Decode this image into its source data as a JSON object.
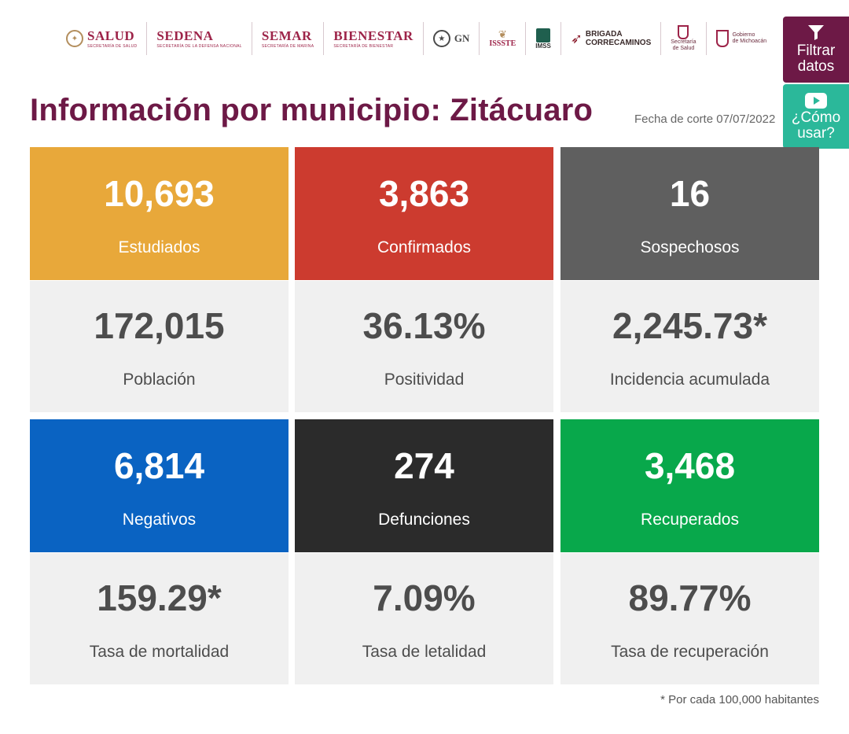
{
  "logos": {
    "salud": "SALUD",
    "salud_sub": "SECRETARÍA DE SALUD",
    "sedena": "SEDENA",
    "sedena_sub": "SECRETARÍA DE LA DEFENSA NACIONAL",
    "semar": "SEMAR",
    "semar_sub": "SECRETARÍA DE MARINA",
    "bienestar": "BIENESTAR",
    "bienestar_sub": "SECRETARÍA DE BIENESTAR",
    "gn": "GN",
    "issste": "ISSSTE",
    "imss": "IMSS",
    "brigada_1": "BRIGADA",
    "brigada_2": "CORRECAMINOS",
    "ssm_1": "Secretaría",
    "ssm_2": "de Salud",
    "gob_1": "Gobierno",
    "gob_2": "de Michoacán"
  },
  "actions": {
    "filter_label_1": "Filtrar",
    "filter_label_2": "datos",
    "help_label_1": "¿Cómo",
    "help_label_2": "usar?"
  },
  "header": {
    "title": "Información por municipio: Zitácuaro",
    "cutoff": "Fecha de corte 07/07/2022"
  },
  "colors": {
    "estudiados": "#e8a83a",
    "confirmados": "#cc3b2f",
    "sospechosos": "#5f5f5f",
    "negativos": "#0a63c2",
    "defunciones": "#2b2b2b",
    "recuperados": "#08a84b"
  },
  "stats": {
    "estudiados": {
      "value": "10,693",
      "label": "Estudiados"
    },
    "confirmados": {
      "value": "3,863",
      "label": "Confirmados"
    },
    "sospechosos": {
      "value": "16",
      "label": "Sospechosos"
    },
    "poblacion": {
      "value": "172,015",
      "label": "Población"
    },
    "positividad": {
      "value": "36.13%",
      "label": "Positividad"
    },
    "incidencia": {
      "value": "2,245.73*",
      "label": "Incidencia acumulada"
    },
    "negativos": {
      "value": "6,814",
      "label": "Negativos"
    },
    "defunciones": {
      "value": "274",
      "label": "Defunciones"
    },
    "recuperados": {
      "value": "3,468",
      "label": "Recuperados"
    },
    "mortalidad": {
      "value": "159.29*",
      "label": "Tasa de mortalidad"
    },
    "letalidad": {
      "value": "7.09%",
      "label": "Tasa de letalidad"
    },
    "recuperacion": {
      "value": "89.77%",
      "label": "Tasa de recuperación"
    }
  },
  "footnote": "* Por cada 100,000 habitantes"
}
